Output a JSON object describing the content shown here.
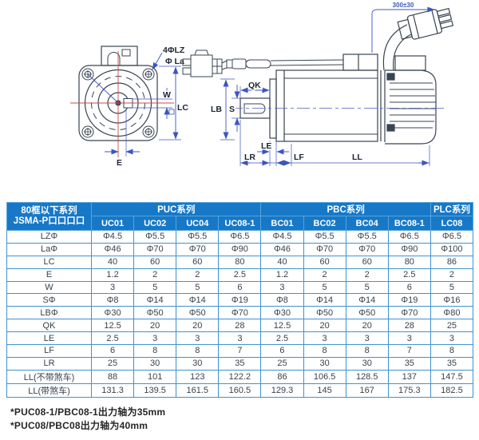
{
  "diagram": {
    "front": {
      "holes": "4ΦLZ",
      "pilot": "Φ La",
      "w": "W",
      "lc": "LC",
      "e": "E"
    },
    "side": {
      "qk": "QK",
      "lb": "LB",
      "s": "S",
      "le": "LE",
      "lr": "LR",
      "lf": "LF",
      "ll": "LL",
      "cable_length": "300±30"
    }
  },
  "table": {
    "corner_header": {
      "line1": "80框以下系列",
      "line2": "JSMA-P口口口口"
    },
    "groups": [
      {
        "label": "PUC系列",
        "span": 4
      },
      {
        "label": "PBC系列",
        "span": 4
      },
      {
        "label": "PLC系列",
        "span": 1
      }
    ],
    "columns": [
      "UC01",
      "UC02",
      "UC04",
      "UC08-1",
      "BC01",
      "BC02",
      "BC04",
      "BC08-1",
      "LC08"
    ],
    "rows": [
      {
        "label": "LZΦ",
        "values": [
          "Φ4.5",
          "Φ5.5",
          "Φ5.5",
          "Φ6.5",
          "Φ4.5",
          "Φ5.5",
          "Φ5.5",
          "Φ6.5",
          "Φ6.5"
        ]
      },
      {
        "label": "LaΦ",
        "values": [
          "Φ46",
          "Φ70",
          "Φ70",
          "Φ90",
          "Φ46",
          "Φ70",
          "Φ70",
          "Φ90",
          "Φ100"
        ]
      },
      {
        "label": "LC",
        "values": [
          "40",
          "60",
          "60",
          "80",
          "40",
          "60",
          "60",
          "80",
          "86"
        ]
      },
      {
        "label": "E",
        "values": [
          "1.2",
          "2",
          "2",
          "2.5",
          "1.2",
          "2",
          "2",
          "2.5",
          "2"
        ]
      },
      {
        "label": "W",
        "values": [
          "3",
          "5",
          "5",
          "6",
          "3",
          "5",
          "5",
          "6",
          "5"
        ]
      },
      {
        "label": "SΦ",
        "values": [
          "Φ8",
          "Φ14",
          "Φ14",
          "Φ19",
          "Φ8",
          "Φ14",
          "Φ14",
          "Φ19",
          "Φ16"
        ]
      },
      {
        "label": "LBΦ",
        "values": [
          "Φ30",
          "Φ50",
          "Φ50",
          "Φ70",
          "Φ30",
          "Φ50",
          "Φ50",
          "Φ70",
          "Φ80"
        ]
      },
      {
        "label": "QK",
        "values": [
          "12.5",
          "20",
          "20",
          "28",
          "12.5",
          "20",
          "20",
          "28",
          "25"
        ]
      },
      {
        "label": "LE",
        "values": [
          "2.5",
          "3",
          "3",
          "3",
          "2.5",
          "3",
          "3",
          "3",
          "3"
        ]
      },
      {
        "label": "LF",
        "values": [
          "6",
          "8",
          "8",
          "7",
          "6",
          "8",
          "8",
          "7",
          "8"
        ]
      },
      {
        "label": "LR",
        "values": [
          "25",
          "30",
          "30",
          "35",
          "25",
          "30",
          "30",
          "35",
          "35"
        ]
      },
      {
        "label": "LL(不带煞车)",
        "values": [
          "88",
          "101",
          "123",
          "122.2",
          "86",
          "106.5",
          "128.5",
          "137",
          "147.5"
        ]
      },
      {
        "label": "LL(带煞车)",
        "values": [
          "131.3",
          "139.5",
          "161.5",
          "160.5",
          "129.3",
          "145",
          "167",
          "175.3",
          "182.5"
        ]
      }
    ]
  },
  "footnotes": [
    "*PUC08-1/PBC08-1出力轴为35mm",
    "*PUC08/PBC08出力轴为40mm"
  ],
  "colors": {
    "header_bg": "#1778c7",
    "grid_line": "#3f93d2",
    "dimension_blue": "#3c55c0",
    "centerline_red": "#c0504d",
    "drawing_line": "#3a4450"
  }
}
